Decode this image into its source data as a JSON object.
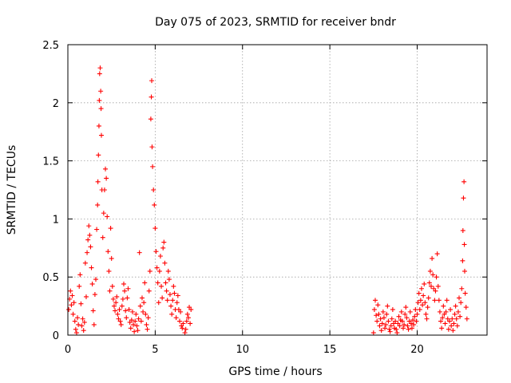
{
  "chart_data": {
    "type": "scatter",
    "title": "Day 075 of 2023, SRMTID for receiver bndr",
    "xlabel": "GPS time / hours",
    "ylabel": "SRMTID / TECUs",
    "xlim": [
      0,
      24
    ],
    "ylim": [
      0,
      2.5
    ],
    "x_ticks": [
      0,
      5,
      10,
      15,
      20
    ],
    "x_tick_labels": [
      "0",
      "5",
      "10",
      "15",
      "20"
    ],
    "y_ticks": [
      0,
      0.5,
      1,
      1.5,
      2,
      2.5
    ],
    "y_tick_labels": [
      "0",
      "0.5",
      "1",
      "1.5",
      "2",
      "2.5"
    ],
    "grid": true,
    "marker": "plus",
    "series": [
      {
        "name": "SRMTID",
        "color": "#ff0000",
        "points": [
          [
            0.05,
            0.22
          ],
          [
            0.1,
            0.31
          ],
          [
            0.15,
            0.38
          ],
          [
            0.2,
            0.26
          ],
          [
            0.25,
            0.34
          ],
          [
            0.3,
            0.18
          ],
          [
            0.35,
            0.28
          ],
          [
            0.4,
            0.12
          ],
          [
            0.45,
            0.05
          ],
          [
            0.5,
            0.02
          ],
          [
            0.55,
            0.15
          ],
          [
            0.6,
            0.09
          ],
          [
            0.65,
            0.42
          ],
          [
            0.7,
            0.52
          ],
          [
            0.75,
            0.27
          ],
          [
            0.8,
            0.08
          ],
          [
            0.85,
            0.14
          ],
          [
            0.9,
            0.04
          ],
          [
            0.95,
            0.11
          ],
          [
            1.0,
            0.62
          ],
          [
            1.05,
            0.33
          ],
          [
            1.1,
            0.71
          ],
          [
            1.15,
            0.82
          ],
          [
            1.2,
            0.94
          ],
          [
            1.25,
            0.86
          ],
          [
            1.3,
            0.76
          ],
          [
            1.35,
            0.58
          ],
          [
            1.4,
            0.44
          ],
          [
            1.45,
            0.21
          ],
          [
            1.5,
            0.09
          ],
          [
            1.55,
            0.35
          ],
          [
            1.6,
            0.48
          ],
          [
            1.65,
            0.91
          ],
          [
            1.7,
            1.12
          ],
          [
            1.72,
            1.32
          ],
          [
            1.75,
            1.55
          ],
          [
            1.78,
            1.8
          ],
          [
            1.8,
            2.02
          ],
          [
            1.82,
            2.25
          ],
          [
            1.85,
            2.3
          ],
          [
            1.88,
            2.1
          ],
          [
            1.9,
            1.95
          ],
          [
            1.92,
            1.72
          ],
          [
            1.95,
            1.25
          ],
          [
            2.0,
            0.84
          ],
          [
            2.05,
            1.05
          ],
          [
            2.1,
            1.25
          ],
          [
            2.15,
            1.43
          ],
          [
            2.2,
            1.35
          ],
          [
            2.25,
            1.02
          ],
          [
            2.3,
            0.72
          ],
          [
            2.35,
            0.55
          ],
          [
            2.4,
            0.38
          ],
          [
            2.45,
            0.92
          ],
          [
            2.5,
            0.66
          ],
          [
            2.55,
            0.42
          ],
          [
            2.6,
            0.31
          ],
          [
            2.65,
            0.25
          ],
          [
            2.7,
            0.21
          ],
          [
            2.75,
            0.28
          ],
          [
            2.8,
            0.33
          ],
          [
            2.85,
            0.18
          ],
          [
            2.9,
            0.14
          ],
          [
            2.95,
            0.22
          ],
          [
            3.0,
            0.12
          ],
          [
            3.05,
            0.09
          ],
          [
            3.1,
            0.25
          ],
          [
            3.15,
            0.31
          ],
          [
            3.2,
            0.44
          ],
          [
            3.25,
            0.38
          ],
          [
            3.3,
            0.21
          ],
          [
            3.35,
            0.15
          ],
          [
            3.4,
            0.32
          ],
          [
            3.45,
            0.4
          ],
          [
            3.5,
            0.22
          ],
          [
            3.55,
            0.11
          ],
          [
            3.6,
            0.06
          ],
          [
            3.65,
            0.13
          ],
          [
            3.7,
            0.2
          ],
          [
            3.75,
            0.09
          ],
          [
            3.8,
            0.03
          ],
          [
            3.85,
            0.12
          ],
          [
            3.9,
            0.18
          ],
          [
            3.95,
            0.08
          ],
          [
            4.0,
            0.04
          ],
          [
            4.05,
            0.14
          ],
          [
            4.1,
            0.71
          ],
          [
            4.15,
            0.25
          ],
          [
            4.2,
            0.12
          ],
          [
            4.25,
            0.32
          ],
          [
            4.3,
            0.2
          ],
          [
            4.35,
            0.28
          ],
          [
            4.4,
            0.45
          ],
          [
            4.45,
            0.18
          ],
          [
            4.5,
            0.09
          ],
          [
            4.55,
            0.05
          ],
          [
            4.6,
            0.15
          ],
          [
            4.65,
            0.38
          ],
          [
            4.7,
            0.55
          ],
          [
            4.75,
            1.86
          ],
          [
            4.78,
            2.05
          ],
          [
            4.8,
            2.19
          ],
          [
            4.82,
            1.62
          ],
          [
            4.85,
            1.45
          ],
          [
            4.9,
            1.25
          ],
          [
            4.95,
            1.12
          ],
          [
            5.0,
            0.92
          ],
          [
            5.05,
            0.72
          ],
          [
            5.1,
            0.58
          ],
          [
            5.15,
            0.45
          ],
          [
            5.2,
            0.28
          ],
          [
            5.25,
            0.55
          ],
          [
            5.3,
            0.68
          ],
          [
            5.35,
            0.42
          ],
          [
            5.4,
            0.32
          ],
          [
            5.45,
            0.75
          ],
          [
            5.5,
            0.8
          ],
          [
            5.55,
            0.62
          ],
          [
            5.6,
            0.45
          ],
          [
            5.65,
            0.38
          ],
          [
            5.7,
            0.3
          ],
          [
            5.75,
            0.55
          ],
          [
            5.8,
            0.48
          ],
          [
            5.85,
            0.35
          ],
          [
            5.9,
            0.25
          ],
          [
            5.95,
            0.18
          ],
          [
            6.0,
            0.3
          ],
          [
            6.05,
            0.42
          ],
          [
            6.1,
            0.36
          ],
          [
            6.15,
            0.22
          ],
          [
            6.2,
            0.15
          ],
          [
            6.25,
            0.28
          ],
          [
            6.3,
            0.34
          ],
          [
            6.35,
            0.22
          ],
          [
            6.4,
            0.12
          ],
          [
            6.45,
            0.2
          ],
          [
            6.5,
            0.08
          ],
          [
            6.55,
            0.06
          ],
          [
            6.6,
            0.1
          ],
          [
            6.7,
            0.02
          ],
          [
            6.75,
            0.05
          ],
          [
            6.8,
            0.12
          ],
          [
            6.85,
            0.18
          ],
          [
            6.9,
            0.15
          ],
          [
            6.95,
            0.24
          ],
          [
            7.0,
            0.1
          ],
          [
            7.05,
            0.22
          ],
          [
            17.5,
            0.02
          ],
          [
            17.55,
            0.22
          ],
          [
            17.6,
            0.3
          ],
          [
            17.65,
            0.17
          ],
          [
            17.7,
            0.12
          ],
          [
            17.75,
            0.26
          ],
          [
            17.8,
            0.18
          ],
          [
            17.85,
            0.08
          ],
          [
            17.9,
            0.14
          ],
          [
            17.95,
            0.04
          ],
          [
            18.0,
            0.1
          ],
          [
            18.05,
            0.2
          ],
          [
            18.1,
            0.15
          ],
          [
            18.15,
            0.06
          ],
          [
            18.2,
            0.09
          ],
          [
            18.25,
            0.18
          ],
          [
            18.3,
            0.25
          ],
          [
            18.35,
            0.12
          ],
          [
            18.4,
            0.05
          ],
          [
            18.45,
            0.03
          ],
          [
            18.5,
            0.08
          ],
          [
            18.55,
            0.14
          ],
          [
            18.6,
            0.22
          ],
          [
            18.65,
            0.1
          ],
          [
            18.7,
            0.06
          ],
          [
            18.75,
            0.12
          ],
          [
            18.8,
            0.05
          ],
          [
            18.85,
            0.02
          ],
          [
            18.9,
            0.1
          ],
          [
            18.95,
            0.16
          ],
          [
            19.0,
            0.08
          ],
          [
            19.05,
            0.13
          ],
          [
            19.1,
            0.2
          ],
          [
            19.15,
            0.12
          ],
          [
            19.2,
            0.06
          ],
          [
            19.25,
            0.09
          ],
          [
            19.3,
            0.18
          ],
          [
            19.35,
            0.24
          ],
          [
            19.4,
            0.15
          ],
          [
            19.45,
            0.08
          ],
          [
            19.5,
            0.05
          ],
          [
            19.55,
            0.12
          ],
          [
            19.6,
            0.2
          ],
          [
            19.65,
            0.1
          ],
          [
            19.7,
            0.06
          ],
          [
            19.75,
            0.13
          ],
          [
            19.8,
            0.09
          ],
          [
            19.85,
            0.16
          ],
          [
            19.9,
            0.22
          ],
          [
            19.95,
            0.12
          ],
          [
            20.0,
            0.18
          ],
          [
            20.05,
            0.28
          ],
          [
            20.1,
            0.36
          ],
          [
            20.15,
            0.22
          ],
          [
            20.2,
            0.3
          ],
          [
            20.25,
            0.4
          ],
          [
            20.3,
            0.26
          ],
          [
            20.35,
            0.34
          ],
          [
            20.4,
            0.44
          ],
          [
            20.45,
            0.28
          ],
          [
            20.5,
            0.18
          ],
          [
            20.55,
            0.14
          ],
          [
            20.6,
            0.24
          ],
          [
            20.65,
            0.32
          ],
          [
            20.7,
            0.45
          ],
          [
            20.75,
            0.55
          ],
          [
            20.8,
            0.42
          ],
          [
            20.85,
            0.66
          ],
          [
            20.9,
            0.52
          ],
          [
            20.95,
            0.4
          ],
          [
            21.0,
            0.3
          ],
          [
            21.05,
            0.38
          ],
          [
            21.1,
            0.5
          ],
          [
            21.15,
            0.7
          ],
          [
            21.2,
            0.42
          ],
          [
            21.25,
            0.3
          ],
          [
            21.3,
            0.2
          ],
          [
            21.35,
            0.12
          ],
          [
            21.4,
            0.06
          ],
          [
            21.45,
            0.15
          ],
          [
            21.5,
            0.25
          ],
          [
            21.55,
            0.18
          ],
          [
            21.6,
            0.1
          ],
          [
            21.65,
            0.2
          ],
          [
            21.7,
            0.3
          ],
          [
            21.75,
            0.14
          ],
          [
            21.8,
            0.05
          ],
          [
            21.85,
            0.12
          ],
          [
            21.9,
            0.22
          ],
          [
            21.95,
            0.08
          ],
          [
            22.0,
            0.14
          ],
          [
            22.05,
            0.04
          ],
          [
            22.1,
            0.1
          ],
          [
            22.15,
            0.18
          ],
          [
            22.2,
            0.25
          ],
          [
            22.25,
            0.14
          ],
          [
            22.3,
            0.08
          ],
          [
            22.35,
            0.2
          ],
          [
            22.4,
            0.32
          ],
          [
            22.45,
            0.16
          ],
          [
            22.5,
            0.28
          ],
          [
            22.55,
            0.4
          ],
          [
            22.6,
            0.64
          ],
          [
            22.62,
            0.9
          ],
          [
            22.65,
            1.18
          ],
          [
            22.68,
            1.32
          ],
          [
            22.7,
            0.78
          ],
          [
            22.72,
            0.55
          ],
          [
            22.75,
            0.36
          ],
          [
            22.8,
            0.24
          ],
          [
            22.85,
            0.14
          ]
        ]
      }
    ]
  }
}
